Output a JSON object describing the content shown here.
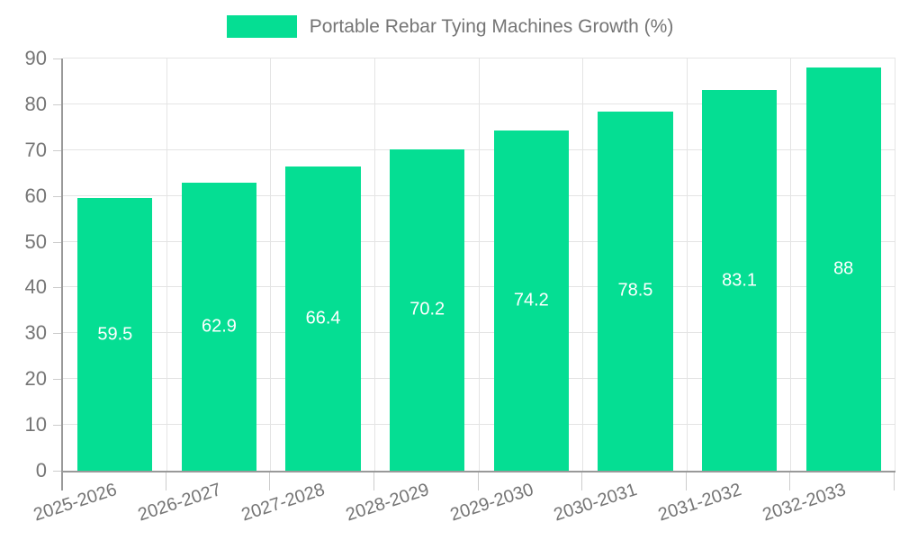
{
  "legend": {
    "label": "Portable Rebar Tying Machines Growth (%)"
  },
  "colors": {
    "bar": "#05de93",
    "bar_label": "#ffffff",
    "axis_line": "#999999",
    "grid_line": "#e4e4e4",
    "tick_line": "#cccccc",
    "text": "#757575",
    "background": "#ffffff"
  },
  "chart_data": {
    "type": "bar",
    "title": "Portable Rebar Tying Machines Growth (%)",
    "categories": [
      "2025-2026",
      "2026-2027",
      "2027-2028",
      "2028-2029",
      "2029-2030",
      "2030-2031",
      "2031-2032",
      "2032-2033"
    ],
    "values": [
      59.5,
      62.9,
      66.4,
      70.2,
      74.2,
      78.5,
      83.1,
      88
    ],
    "value_labels": [
      "59.5",
      "62.9",
      "66.4",
      "70.2",
      "74.2",
      "78.5",
      "83.1",
      "88"
    ],
    "xlabel": "",
    "ylabel": "",
    "ylim": [
      0,
      90
    ],
    "yticks": [
      0,
      10,
      20,
      30,
      40,
      50,
      60,
      70,
      80,
      90
    ],
    "grid": true,
    "legend_position": "top-center",
    "bar_label_position": "inside-center",
    "x_label_rotation_deg": -18
  }
}
